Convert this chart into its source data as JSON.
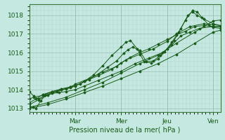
{
  "background_color": "#c5e8e0",
  "plot_bg_color": "#c5e8e0",
  "grid_color_major": "#9abfb8",
  "grid_color_minor": "#b0d0ca",
  "line_color": "#1a5c1a",
  "marker_color": "#1a5c1a",
  "xlabel": "Pression niveau de la mer( hPa )",
  "xlabel_color": "#1a5c1a",
  "tick_color": "#1a5c1a",
  "spine_color": "#3a7a3a",
  "ylim": [
    1012.8,
    1018.6
  ],
  "yticks": [
    1013,
    1014,
    1015,
    1016,
    1017,
    1018
  ],
  "xmin": 0.0,
  "xmax": 4.16,
  "xtick_labels": [
    "Mar",
    "Mer",
    "Jeu",
    "Ven"
  ],
  "xtick_positions": [
    1.0,
    2.0,
    3.0,
    4.0
  ],
  "series": [
    [
      0.0,
      1013.1,
      0.08,
      1013.05,
      0.15,
      1013.0,
      0.25,
      1013.4,
      0.35,
      1013.7,
      0.5,
      1013.8,
      0.65,
      1013.85,
      0.8,
      1013.9,
      1.0,
      1014.0,
      1.2,
      1014.2,
      1.5,
      1014.5,
      1.8,
      1014.8,
      2.0,
      1015.0,
      2.3,
      1015.4,
      2.6,
      1015.7,
      2.9,
      1016.0,
      3.1,
      1016.4,
      3.3,
      1016.9,
      3.5,
      1017.1,
      3.7,
      1017.3,
      4.0,
      1017.4,
      4.16,
      1017.4
    ],
    [
      0.0,
      1013.5,
      0.1,
      1013.6,
      0.3,
      1013.7,
      0.5,
      1013.9,
      0.7,
      1014.05,
      0.9,
      1014.15,
      1.0,
      1014.3,
      1.3,
      1014.6,
      1.6,
      1014.95,
      1.9,
      1015.25,
      2.1,
      1015.6,
      2.4,
      1015.9,
      2.7,
      1016.2,
      3.0,
      1016.6,
      3.2,
      1017.0,
      3.5,
      1017.4,
      3.8,
      1017.55,
      4.0,
      1017.5,
      4.16,
      1017.45
    ],
    [
      0.0,
      1013.9,
      0.1,
      1013.65,
      0.2,
      1013.5,
      0.35,
      1013.7,
      0.5,
      1013.85,
      0.7,
      1014.0,
      0.9,
      1014.15,
      1.1,
      1014.3,
      1.3,
      1014.55,
      1.5,
      1014.85,
      1.7,
      1015.2,
      1.9,
      1015.55,
      2.05,
      1015.95,
      2.15,
      1016.15,
      2.25,
      1016.3,
      2.4,
      1016.1,
      2.55,
      1015.5,
      2.7,
      1015.55,
      2.85,
      1015.85,
      3.0,
      1016.2,
      3.15,
      1016.65,
      3.3,
      1017.3,
      3.45,
      1018.0,
      3.55,
      1018.2,
      3.65,
      1018.0,
      3.8,
      1017.8,
      4.0,
      1017.55,
      4.16,
      1017.45
    ],
    [
      0.0,
      1013.3,
      0.15,
      1013.5,
      0.3,
      1013.75,
      0.5,
      1013.9,
      0.7,
      1014.0,
      0.9,
      1014.1,
      1.0,
      1014.2,
      1.2,
      1014.45,
      1.4,
      1014.8,
      1.6,
      1015.3,
      1.8,
      1015.85,
      2.0,
      1016.3,
      2.1,
      1016.55,
      2.2,
      1016.65,
      2.35,
      1016.2,
      2.5,
      1015.5,
      2.65,
      1015.45,
      2.8,
      1015.65,
      2.95,
      1016.05,
      3.1,
      1016.55,
      3.25,
      1017.1,
      3.4,
      1017.75,
      3.55,
      1018.25,
      3.65,
      1018.2,
      3.75,
      1017.9,
      3.9,
      1017.5,
      4.0,
      1017.35,
      4.16,
      1017.3
    ],
    [
      0.0,
      1013.2,
      0.2,
      1013.45,
      0.4,
      1013.7,
      0.6,
      1013.9,
      0.8,
      1014.05,
      1.0,
      1014.2,
      1.2,
      1014.45,
      1.5,
      1014.75,
      1.8,
      1015.1,
      2.0,
      1015.45,
      2.2,
      1015.75,
      2.4,
      1016.0,
      2.6,
      1016.2,
      2.8,
      1016.45,
      3.0,
      1016.7,
      3.2,
      1016.95,
      3.4,
      1017.15,
      3.6,
      1017.4,
      3.8,
      1017.45,
      4.0,
      1017.4,
      4.16,
      1017.38
    ],
    [
      0.0,
      1013.05,
      0.4,
      1013.3,
      0.8,
      1013.6,
      1.2,
      1014.0,
      1.6,
      1014.4,
      2.0,
      1014.9,
      2.4,
      1015.4,
      2.8,
      1015.85,
      3.2,
      1016.5,
      3.6,
      1017.1,
      4.0,
      1017.7,
      4.16,
      1017.75
    ],
    [
      0.0,
      1013.0,
      0.4,
      1013.2,
      0.8,
      1013.5,
      1.2,
      1013.85,
      1.6,
      1014.2,
      2.0,
      1014.6,
      2.4,
      1015.0,
      2.8,
      1015.4,
      3.2,
      1015.9,
      3.6,
      1016.5,
      4.0,
      1017.1,
      4.16,
      1017.2
    ]
  ]
}
